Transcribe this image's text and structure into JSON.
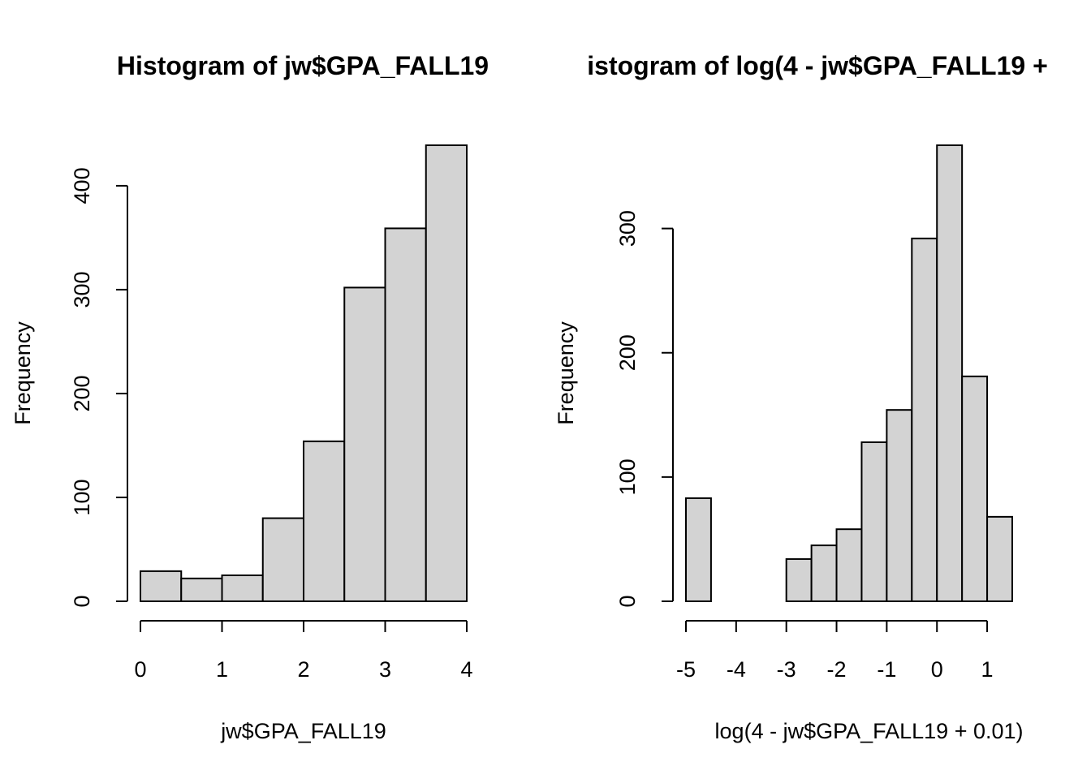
{
  "chart_data": [
    {
      "type": "bar",
      "title": "Histogram of jw$GPA_FALL19",
      "xlabel": "jw$GPA_FALL19",
      "ylabel": "Frequency",
      "breaks": [
        0,
        0.5,
        1,
        1.5,
        2,
        2.5,
        3,
        3.5,
        4
      ],
      "values": [
        29,
        22,
        25,
        80,
        154,
        302,
        359,
        439
      ],
      "xlim": [
        0,
        4
      ],
      "ylim": [
        0,
        439
      ],
      "xticks": [
        0,
        1,
        2,
        3,
        4
      ],
      "yticks": [
        0,
        100,
        200,
        300,
        400
      ],
      "grid": false
    },
    {
      "type": "bar",
      "title": "istogram of log(4 - jw$GPA_FALL19 +",
      "xlabel": "log(4 - jw$GPA_FALL19 + 0.01)",
      "ylabel": "Frequency",
      "breaks": [
        -5,
        -4.5,
        -4,
        -3.5,
        -3,
        -2.5,
        -2,
        -1.5,
        -1,
        -0.5,
        0,
        0.5,
        1,
        1.5
      ],
      "values": [
        83,
        0,
        0,
        0,
        34,
        45,
        58,
        128,
        154,
        292,
        367,
        181,
        68
      ],
      "xlim": [
        -5,
        1.5
      ],
      "ylim": [
        0,
        367
      ],
      "xticks": [
        -5,
        -4,
        -3,
        -2,
        -1,
        0,
        1
      ],
      "yticks": [
        0,
        100,
        200,
        300
      ],
      "grid": false
    }
  ]
}
